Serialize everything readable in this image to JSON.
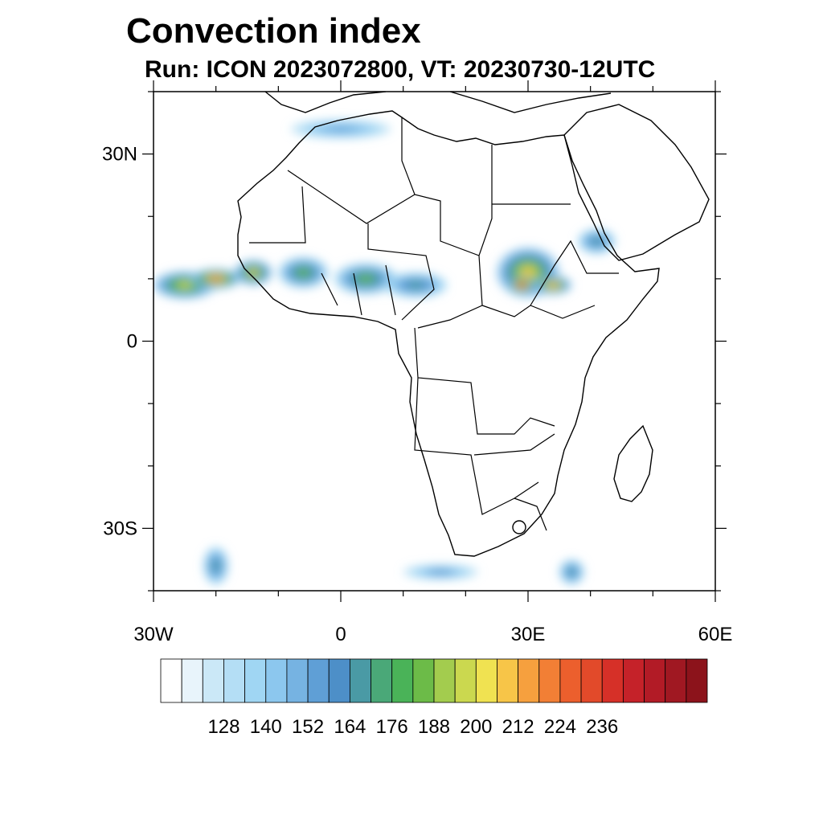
{
  "title": "Convection index",
  "subtitle": "Run: ICON 2023072800,  VT: 20230730-12UTC",
  "map": {
    "region": "Africa",
    "lon_range": [
      -30,
      60
    ],
    "lat_range": [
      -40,
      40
    ],
    "lat_ticks": [
      {
        "value": 30,
        "label": "30N"
      },
      {
        "value": 0,
        "label": "0"
      },
      {
        "value": -30,
        "label": "30S"
      }
    ],
    "lon_ticks": [
      {
        "value": -30,
        "label": "30W"
      },
      {
        "value": 0,
        "label": "0"
      },
      {
        "value": 30,
        "label": "30E"
      },
      {
        "value": 60,
        "label": "60E"
      }
    ],
    "minor_lat_ticks": [
      40,
      20,
      10,
      -10,
      -20,
      -40
    ],
    "minor_lon_ticks": [
      -20,
      -10,
      10,
      20,
      40,
      50
    ]
  },
  "colorbar": {
    "colors": [
      "#ffffff",
      "#e8f4fb",
      "#cbe8f7",
      "#b4def5",
      "#a0d6f3",
      "#8cc7ee",
      "#76b3e2",
      "#5f9fd6",
      "#4d8fc8",
      "#4a9aa5",
      "#4aa878",
      "#4ab358",
      "#6cbb48",
      "#a3cc4e",
      "#cbd84f",
      "#f0e251",
      "#f7c548",
      "#f6a03e",
      "#f27f35",
      "#ec5f2d",
      "#e24a2a",
      "#d63028",
      "#c52229",
      "#b21b26",
      "#a01822",
      "#8c131b"
    ],
    "label_values": [
      "128",
      "140",
      "152",
      "164",
      "176",
      "188",
      "200",
      "212",
      "224",
      "236"
    ]
  },
  "convection_cells": [
    {
      "lon": -25,
      "lat": 9,
      "rx": 5,
      "ry": 2.2,
      "level": 0.55
    },
    {
      "lon": -20,
      "lat": 10,
      "rx": 4,
      "ry": 1.6,
      "level": 0.75
    },
    {
      "lon": -14,
      "lat": 11,
      "rx": 3,
      "ry": 2,
      "level": 0.6
    },
    {
      "lon": -6,
      "lat": 11,
      "rx": 4,
      "ry": 2.5,
      "level": 0.45
    },
    {
      "lon": 4,
      "lat": 10,
      "rx": 5,
      "ry": 2.5,
      "level": 0.45
    },
    {
      "lon": 12,
      "lat": 9,
      "rx": 5,
      "ry": 2,
      "level": 0.35
    },
    {
      "lon": 30,
      "lat": 11,
      "rx": 5,
      "ry": 4,
      "level": 0.6
    },
    {
      "lon": 29,
      "lat": 9,
      "rx": 2,
      "ry": 1.4,
      "level": 0.9
    },
    {
      "lon": 34,
      "lat": 9,
      "rx": 3,
      "ry": 1.5,
      "level": 0.7
    },
    {
      "lon": 41,
      "lat": 16,
      "rx": 3,
      "ry": 2,
      "level": 0.35
    },
    {
      "lon": 0,
      "lat": 34,
      "rx": 8,
      "ry": 1.5,
      "level": 0.2
    },
    {
      "lon": -20,
      "lat": -36,
      "rx": 2,
      "ry": 3,
      "level": 0.35
    },
    {
      "lon": 16,
      "lat": -37,
      "rx": 6,
      "ry": 1.2,
      "level": 0.25
    },
    {
      "lon": 37,
      "lat": -37,
      "rx": 2,
      "ry": 2,
      "level": 0.35
    }
  ]
}
